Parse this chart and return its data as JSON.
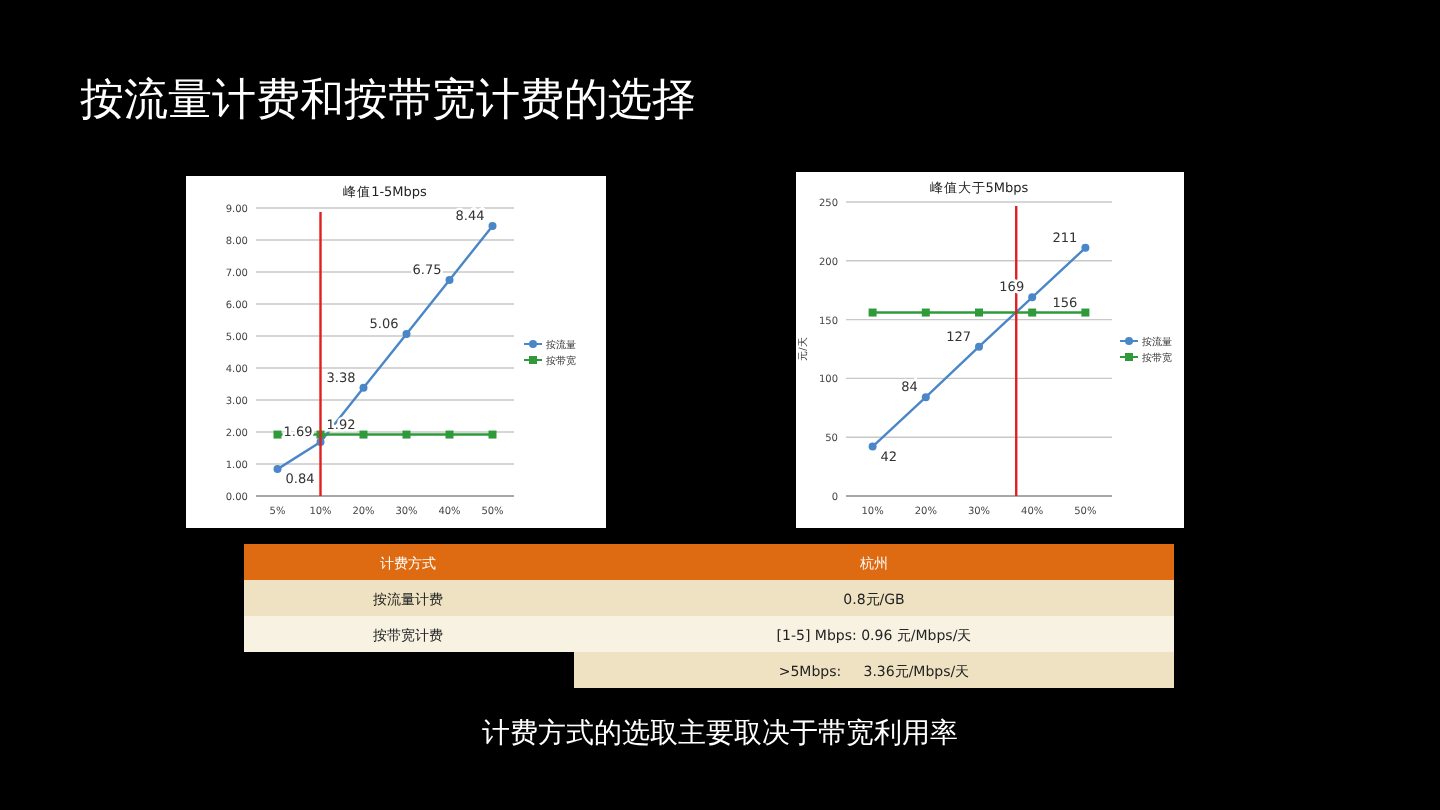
{
  "chart_data": [
    {
      "type": "line",
      "title": "峰值1-5Mbps",
      "categories": [
        "5%",
        "10%",
        "20%",
        "30%",
        "40%",
        "50%"
      ],
      "ylim": [
        0,
        9
      ],
      "yticks": [
        {
          "value": 0,
          "label": "0.00"
        },
        {
          "value": 1,
          "label": "1.00"
        },
        {
          "value": 2,
          "label": "2.00"
        },
        {
          "value": 3,
          "label": "3.00"
        },
        {
          "value": 4,
          "label": "4.00"
        },
        {
          "value": 5,
          "label": "5.00"
        },
        {
          "value": 6,
          "label": "6.00"
        },
        {
          "value": 7,
          "label": "7.00"
        },
        {
          "value": 8,
          "label": "8.00"
        },
        {
          "value": 9,
          "label": "9.00"
        }
      ],
      "grid": "y",
      "legend": "right",
      "series": [
        {
          "name": "按流量",
          "color": "#4a86c8",
          "marker": "circle",
          "values": [
            0.84,
            1.69,
            3.38,
            5.06,
            6.75,
            8.44
          ],
          "value_labels": [
            "0.84",
            "1.69",
            "3.38",
            "5.06",
            "6.75",
            "8.44"
          ]
        },
        {
          "name": "按带宽",
          "color": "#2e9a3a",
          "marker": "square",
          "values": [
            1.92,
            1.92,
            1.92,
            1.92,
            1.92,
            1.92
          ],
          "value_labels": [
            null,
            null,
            "1.92",
            null,
            null,
            null
          ]
        }
      ],
      "ref_lines": [
        {
          "axis": "x",
          "value": "10%",
          "color": "#e02020"
        }
      ]
    },
    {
      "type": "line",
      "title": "峰值大于5Mbps",
      "ylabel": "元/天",
      "x": [
        10,
        20,
        30,
        40,
        50
      ],
      "xlim": [
        5,
        55
      ],
      "xticks": [
        {
          "value": 10,
          "label": "10%"
        },
        {
          "value": 20,
          "label": "20%"
        },
        {
          "value": 30,
          "label": "30%"
        },
        {
          "value": 40,
          "label": "40%"
        },
        {
          "value": 50,
          "label": "50%"
        }
      ],
      "ylim": [
        0,
        250
      ],
      "yticks": [
        0,
        50,
        100,
        150,
        200,
        250
      ],
      "grid": "y",
      "legend": "right",
      "series": [
        {
          "name": "按流量",
          "color": "#4a86c8",
          "marker": "circle",
          "values": [
            42,
            84,
            127,
            169,
            211
          ],
          "value_labels": [
            "42",
            "84",
            "127",
            "169",
            "211"
          ]
        },
        {
          "name": "按带宽",
          "color": "#2e9a3a",
          "marker": "square",
          "values": [
            156,
            156,
            156,
            156,
            156
          ],
          "value_labels": [
            null,
            null,
            null,
            null,
            "156"
          ]
        }
      ],
      "ref_lines": [
        {
          "axis": "x",
          "value": 37,
          "color": "#e02020"
        }
      ]
    },
    {
      "type": "other",
      "title": "按流量计费和按带宽计费的选择",
      "annotations": [
        "计费方式",
        "杭州",
        "按流量计费",
        "0.8元/GB",
        "按带宽计费",
        "[1-5] Mbps: 0.96 元/Mbps/天",
        ">5Mbps:     3.36元/Mbps/天",
        "计费方式的选取主要取决于带宽利用率"
      ]
    }
  ]
}
